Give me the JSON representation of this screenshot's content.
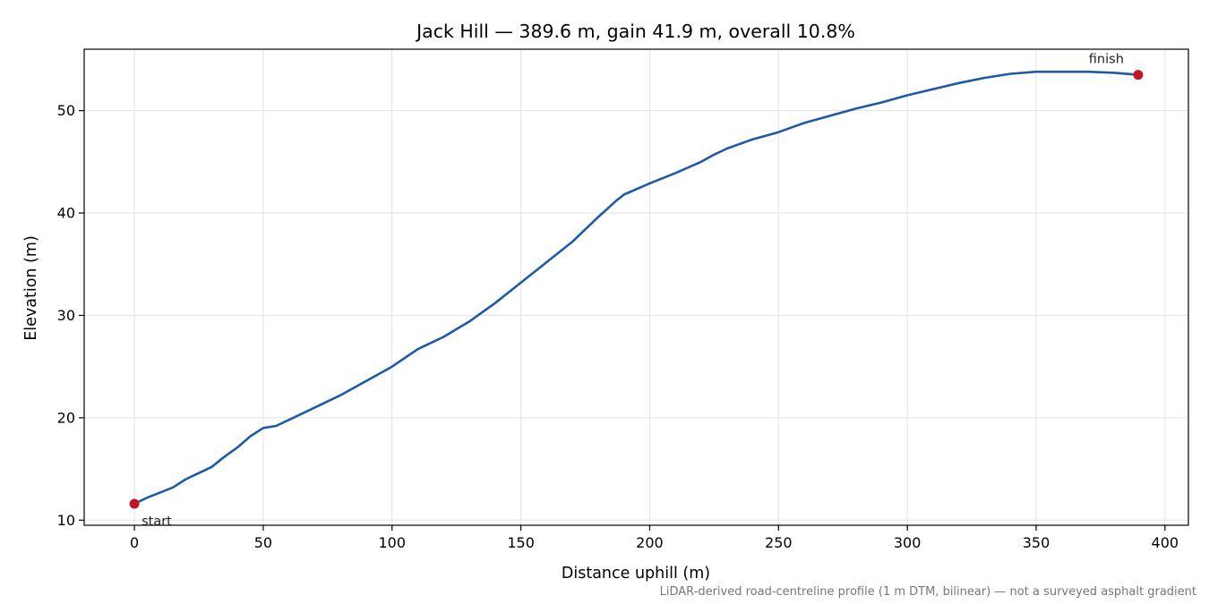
{
  "chart_data": {
    "type": "line",
    "title": "Jack Hill — 389.6 m, gain 41.9 m, overall 10.8%",
    "xlabel": "Distance uphill (m)",
    "ylabel": "Elevation (m)",
    "xlim": [
      -19.5,
      409.1
    ],
    "ylim": [
      9.5,
      56.0
    ],
    "xticks": [
      0,
      50,
      100,
      150,
      200,
      250,
      300,
      350,
      400
    ],
    "yticks": [
      10,
      20,
      30,
      40,
      50
    ],
    "grid": true,
    "line_color": "#1f5aa6",
    "marker_color": "#c0172a",
    "series": [
      {
        "x": [
          0,
          5,
          10,
          15,
          20,
          25,
          30,
          35,
          40,
          45,
          50,
          55,
          60,
          70,
          80,
          90,
          100,
          110,
          120,
          130,
          140,
          150,
          160,
          170,
          180,
          187,
          190,
          200,
          210,
          220,
          225,
          230,
          240,
          250,
          260,
          270,
          280,
          290,
          300,
          310,
          320,
          330,
          340,
          350,
          360,
          370,
          380,
          389.6
        ],
        "y": [
          11.6,
          12.2,
          12.7,
          13.2,
          14.0,
          14.6,
          15.2,
          16.2,
          17.1,
          18.2,
          19.0,
          19.2,
          19.8,
          21.0,
          22.2,
          23.6,
          25.0,
          26.7,
          27.9,
          29.4,
          31.2,
          33.2,
          35.2,
          37.2,
          39.6,
          41.2,
          41.8,
          42.9,
          43.9,
          45.0,
          45.7,
          46.3,
          47.2,
          47.9,
          48.8,
          49.5,
          50.2,
          50.8,
          51.5,
          52.1,
          52.7,
          53.2,
          53.6,
          53.8,
          53.8,
          53.8,
          53.7,
          53.5
        ]
      }
    ],
    "annotations": [
      {
        "label": "start",
        "x": 0,
        "y": 11.6
      },
      {
        "label": "finish",
        "x": 389.6,
        "y": 53.5
      }
    ],
    "footnote": "LiDAR-derived road-centreline profile (1 m DTM, bilinear) — not a surveyed asphalt gradient"
  }
}
